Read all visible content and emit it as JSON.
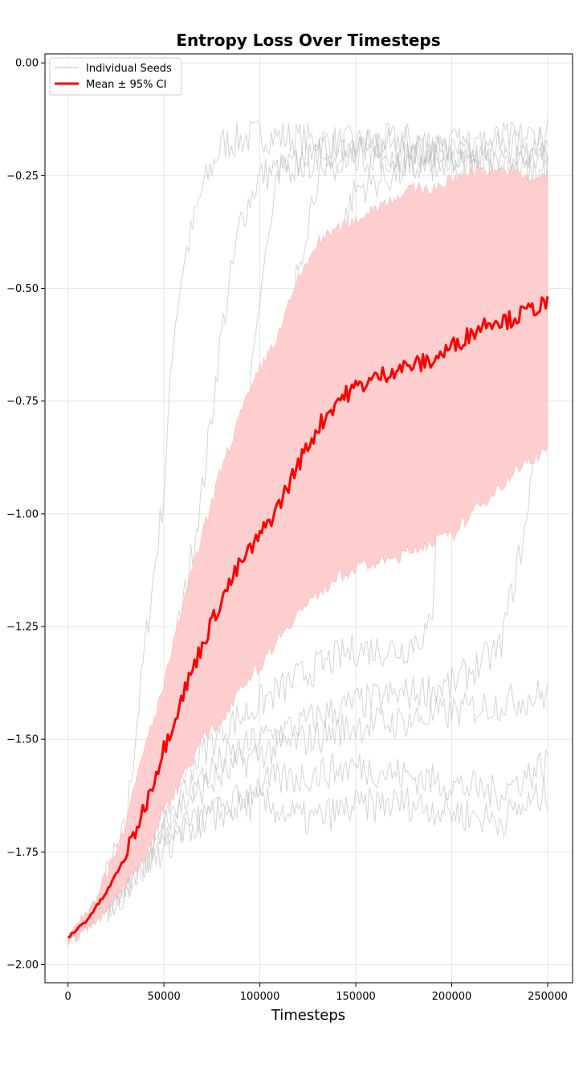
{
  "chart_data": {
    "type": "line",
    "title": "Entropy Loss Over Timesteps",
    "xlabel": "Timesteps",
    "ylabel": "",
    "xlim": [
      -12000,
      263000
    ],
    "ylim": [
      -2.04,
      0.02
    ],
    "xticks": [
      0,
      50000,
      100000,
      150000,
      200000,
      250000
    ],
    "xtick_labels": [
      "0",
      "50000",
      "100000",
      "150000",
      "200000",
      "250000"
    ],
    "yticks": [
      0.0,
      -0.25,
      -0.5,
      -0.75,
      -1.0,
      -1.25,
      -1.5,
      -1.75,
      -2.0
    ],
    "ytick_labels": [
      "0.00",
      "−0.25",
      "−0.50",
      "−0.75",
      "−1.00",
      "−1.25",
      "−1.50",
      "−1.75",
      "−2.00"
    ],
    "grid": true,
    "legend_position": "top-left",
    "legend": [
      {
        "label": "Individual Seeds",
        "color": "#bbbbbb",
        "style": "thin-line"
      },
      {
        "label": "Mean ± 95% CI",
        "color": "#ff0000",
        "style": "thick-line"
      }
    ],
    "colors": {
      "mean": "#ff0000",
      "ci_fill": "#ffcccc",
      "seeds": "#b8b8b8"
    },
    "mean": {
      "x": [
        0,
        10000,
        20000,
        30000,
        40000,
        50000,
        60000,
        70000,
        80000,
        90000,
        100000,
        110000,
        120000,
        130000,
        140000,
        150000,
        160000,
        170000,
        180000,
        190000,
        200000,
        210000,
        220000,
        230000,
        240000,
        250000
      ],
      "y": [
        -1.94,
        -1.9,
        -1.84,
        -1.76,
        -1.65,
        -1.52,
        -1.4,
        -1.29,
        -1.19,
        -1.11,
        -1.05,
        -0.98,
        -0.89,
        -0.81,
        -0.75,
        -0.72,
        -0.7,
        -0.68,
        -0.67,
        -0.66,
        -0.63,
        -0.6,
        -0.57,
        -0.57,
        -0.55,
        -0.53
      ]
    },
    "ci_upper": [
      -1.93,
      -1.88,
      -1.8,
      -1.69,
      -1.52,
      -1.38,
      -1.2,
      -1.05,
      -0.9,
      -0.78,
      -0.68,
      -0.6,
      -0.48,
      -0.4,
      -0.37,
      -0.35,
      -0.32,
      -0.3,
      -0.28,
      -0.28,
      -0.26,
      -0.24,
      -0.24,
      -0.24,
      -0.26,
      -0.25
    ],
    "ci_lower": [
      -1.95,
      -1.92,
      -1.88,
      -1.82,
      -1.76,
      -1.66,
      -1.58,
      -1.5,
      -1.46,
      -1.38,
      -1.34,
      -1.27,
      -1.22,
      -1.18,
      -1.14,
      -1.12,
      -1.11,
      -1.1,
      -1.08,
      -1.06,
      -1.05,
      -1.0,
      -0.96,
      -0.92,
      -0.88,
      -0.86
    ],
    "seeds": [
      {
        "x": [
          0,
          15000,
          30000,
          40000,
          50000,
          55000,
          60000,
          70000,
          80000,
          100000,
          125000,
          150000,
          175000,
          200000,
          225000,
          250000
        ],
        "y": [
          -1.94,
          -1.86,
          -1.7,
          -1.3,
          -0.95,
          -0.6,
          -0.45,
          -0.28,
          -0.18,
          -0.16,
          -0.17,
          -0.18,
          -0.17,
          -0.18,
          -0.19,
          -0.18
        ]
      },
      {
        "x": [
          0,
          15000,
          30000,
          45000,
          60000,
          70000,
          80000,
          90000,
          100000,
          125000,
          150000,
          175000,
          200000,
          225000,
          250000
        ],
        "y": [
          -1.94,
          -1.88,
          -1.76,
          -1.52,
          -1.2,
          -0.95,
          -0.6,
          -0.35,
          -0.25,
          -0.22,
          -0.2,
          -0.21,
          -0.2,
          -0.22,
          -0.21
        ]
      },
      {
        "x": [
          0,
          20000,
          40000,
          60000,
          75000,
          90000,
          100000,
          110000,
          125000,
          150000,
          175000,
          200000,
          225000,
          250000
        ],
        "y": [
          -1.94,
          -1.85,
          -1.65,
          -1.4,
          -1.2,
          -0.9,
          -0.5,
          -0.25,
          -0.2,
          -0.19,
          -0.18,
          -0.2,
          -0.17,
          -0.16
        ]
      },
      {
        "x": [
          0,
          20000,
          40000,
          60000,
          80000,
          100000,
          110000,
          120000,
          130000,
          150000,
          175000,
          200000,
          225000,
          250000
        ],
        "y": [
          -1.94,
          -1.85,
          -1.62,
          -1.45,
          -1.3,
          -1.0,
          -0.75,
          -0.45,
          -0.25,
          -0.2,
          -0.21,
          -0.22,
          -0.23,
          -0.2
        ]
      },
      {
        "x": [
          0,
          20000,
          40000,
          60000,
          80000,
          100000,
          120000,
          130000,
          140000,
          150000,
          175000,
          200000,
          225000,
          250000
        ],
        "y": [
          -1.94,
          -1.86,
          -1.7,
          -1.55,
          -1.4,
          -1.3,
          -1.1,
          -0.7,
          -0.4,
          -0.28,
          -0.24,
          -0.22,
          -0.25,
          -0.24
        ]
      },
      {
        "x": [
          0,
          20000,
          40000,
          60000,
          80000,
          100000,
          125000,
          150000,
          175000,
          190000,
          195000,
          200000,
          225000,
          250000
        ],
        "y": [
          -1.94,
          -1.86,
          -1.72,
          -1.58,
          -1.48,
          -1.42,
          -1.35,
          -1.3,
          -1.3,
          -1.25,
          -0.6,
          -0.3,
          -0.28,
          -0.3
        ]
      },
      {
        "x": [
          0,
          20000,
          40000,
          60000,
          80000,
          100000,
          125000,
          150000,
          175000,
          200000,
          225000,
          240000,
          250000
        ],
        "y": [
          -1.94,
          -1.87,
          -1.74,
          -1.62,
          -1.55,
          -1.5,
          -1.46,
          -1.42,
          -1.4,
          -1.38,
          -1.3,
          -1.0,
          -0.4
        ]
      },
      {
        "x": [
          0,
          20000,
          40000,
          60000,
          80000,
          100000,
          125000,
          150000,
          175000,
          200000,
          225000,
          250000
        ],
        "y": [
          -1.94,
          -1.87,
          -1.75,
          -1.64,
          -1.58,
          -1.53,
          -1.5,
          -1.47,
          -1.46,
          -1.44,
          -1.42,
          -1.4
        ]
      },
      {
        "x": [
          0,
          20000,
          40000,
          60000,
          80000,
          100000,
          125000,
          150000,
          175000,
          200000,
          225000,
          250000
        ],
        "y": [
          -1.94,
          -1.88,
          -1.78,
          -1.7,
          -1.66,
          -1.6,
          -1.58,
          -1.56,
          -1.58,
          -1.6,
          -1.62,
          -1.55
        ]
      },
      {
        "x": [
          0,
          20000,
          40000,
          60000,
          80000,
          100000,
          125000,
          150000,
          175000,
          200000,
          225000,
          250000
        ],
        "y": [
          -1.94,
          -1.88,
          -1.78,
          -1.7,
          -1.66,
          -1.64,
          -1.68,
          -1.65,
          -1.64,
          -1.66,
          -1.68,
          -1.62
        ]
      }
    ]
  }
}
